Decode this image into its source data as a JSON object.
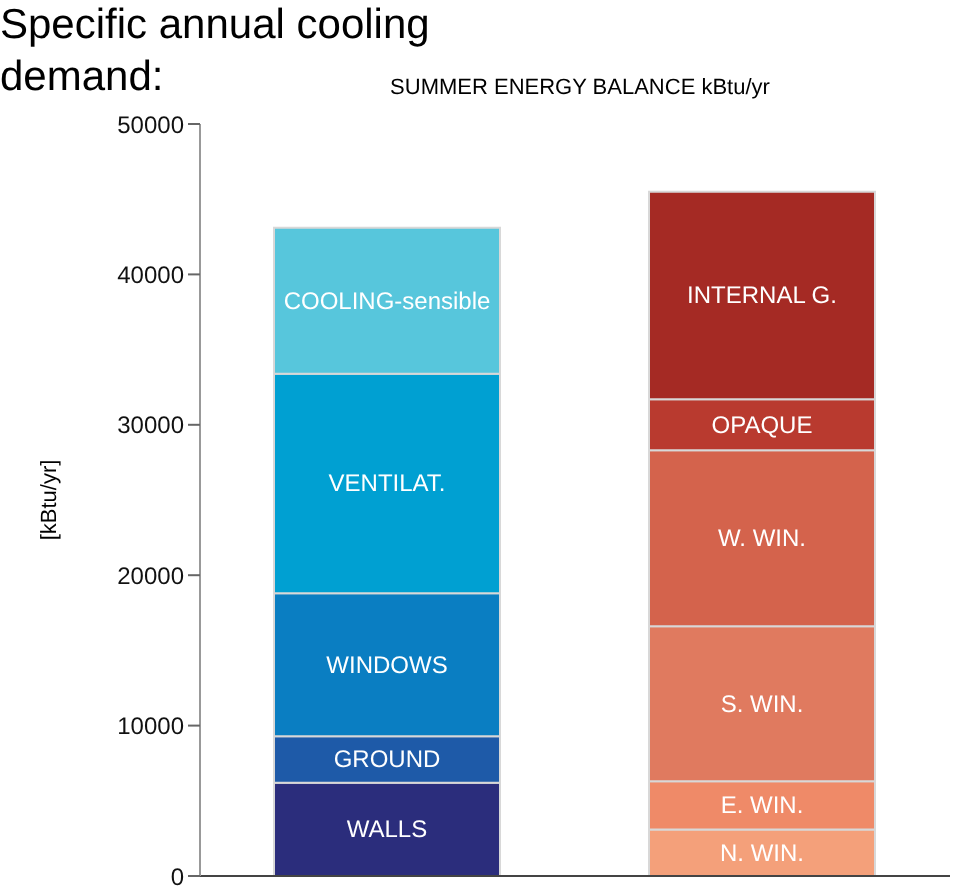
{
  "chart_data": {
    "type": "bar",
    "stacked": true,
    "title": "Specific annual cooling demand:",
    "subtitle": "SUMMER ENERGY BALANCE kBtu/yr",
    "ylabel": "[kBtu/yr]",
    "categories": [
      null,
      null
    ],
    "series": [
      {
        "name": "WALLS",
        "color": "#2b2d7c",
        "values": [
          6200,
          null
        ]
      },
      {
        "name": "GROUND",
        "color": "#1e5aa8",
        "values": [
          3100,
          null
        ]
      },
      {
        "name": "WINDOWS",
        "color": "#0a7ec2",
        "values": [
          9500,
          null
        ]
      },
      {
        "name": "VENTILAT.",
        "color": "#00a0d2",
        "values": [
          14600,
          null
        ]
      },
      {
        "name": "COOLING-sensible",
        "color": "#57c6dc",
        "values": [
          9700,
          null
        ]
      },
      {
        "name": "N. WIN.",
        "color": "#f4a07a",
        "values": [
          null,
          3100
        ]
      },
      {
        "name": "E. WIN.",
        "color": "#ef8a68",
        "values": [
          null,
          3200
        ]
      },
      {
        "name": "S. WIN.",
        "color": "#e07a5f",
        "values": [
          null,
          10300
        ]
      },
      {
        "name": "W. WIN.",
        "color": "#d4634c",
        "values": [
          null,
          11700
        ]
      },
      {
        "name": "OPAQUE",
        "color": "#b93a2f",
        "values": [
          null,
          3400
        ]
      },
      {
        "name": "INTERNAL G.",
        "color": "#a52a24",
        "values": [
          null,
          13800
        ]
      }
    ],
    "ylim": [
      0,
      50000
    ],
    "yticks": [
      0,
      10000,
      20000,
      30000,
      40000,
      50000
    ],
    "grid": false,
    "legend": false,
    "tick_labels": "y"
  }
}
